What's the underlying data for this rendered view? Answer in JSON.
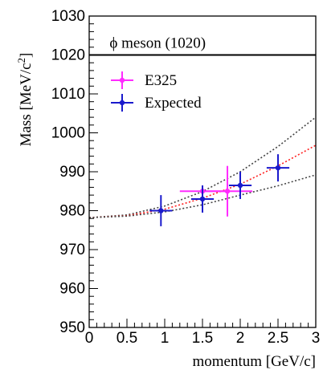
{
  "chart_data": {
    "type": "scatter",
    "xlabel": "momentum [GeV/c]",
    "ylabel_main": "Mass [MeV/c",
    "ylabel_sup": "2",
    "ylabel_end": "]",
    "xlim": [
      0,
      3
    ],
    "ylim": [
      950,
      1030
    ],
    "x_ticks": [
      0,
      0.5,
      1,
      1.5,
      2,
      2.5,
      3
    ],
    "x_tick_labels": [
      "0",
      "0.5",
      "1",
      "1.5",
      "2",
      "2.5",
      "3"
    ],
    "y_ticks": [
      950,
      960,
      970,
      980,
      990,
      1000,
      1010,
      1020,
      1030
    ],
    "y_tick_labels": [
      "950",
      "960",
      "970",
      "980",
      "990",
      "1000",
      "1010",
      "1020",
      "1030"
    ],
    "reference_line": {
      "y": 1020,
      "label": "ϕ meson (1020)",
      "color": "#000000"
    },
    "series": [
      {
        "name": "E325",
        "color": "#ff2bff",
        "points": [
          {
            "x": 1.5,
            "y": 985,
            "xerr": 0.3,
            "yerr": 0
          },
          {
            "x": 1.83,
            "y": 985,
            "xerr": 0.33,
            "yerr": 6.5
          }
        ]
      },
      {
        "name": "Expected",
        "color": "#1a1acc",
        "points": [
          {
            "x": 0.95,
            "y": 980,
            "xerr": 0.15,
            "yerr": 4
          },
          {
            "x": 1.5,
            "y": 983,
            "xerr": 0.15,
            "yerr": 3.5
          },
          {
            "x": 2.0,
            "y": 986.5,
            "xerr": 0.15,
            "yerr": 3.5
          },
          {
            "x": 2.5,
            "y": 991,
            "xerr": 0.15,
            "yerr": 3.5
          }
        ]
      }
    ],
    "curves": [
      {
        "style": "dotted",
        "color": "#444444",
        "role": "upper",
        "x": [
          0,
          0.5,
          1,
          1.5,
          2,
          2.5,
          3
        ],
        "y": [
          978.2,
          978.9,
          981.2,
          984.9,
          990.0,
          996.5,
          1004.0
        ]
      },
      {
        "style": "dotted",
        "color": "#ff2020",
        "role": "central",
        "x": [
          0,
          0.5,
          1,
          1.5,
          2,
          2.5,
          3
        ],
        "y": [
          978.2,
          978.7,
          980.4,
          983.2,
          986.8,
          991.5,
          996.8
        ]
      },
      {
        "style": "dotted",
        "color": "#444444",
        "role": "lower",
        "x": [
          0,
          0.5,
          1,
          1.5,
          2,
          2.5,
          3
        ],
        "y": [
          978.2,
          978.6,
          979.7,
          981.5,
          984.0,
          986.4,
          989.2
        ]
      }
    ],
    "legend": {
      "placement": "top-left",
      "entries": [
        "E325",
        "Expected"
      ]
    },
    "grid": false
  }
}
